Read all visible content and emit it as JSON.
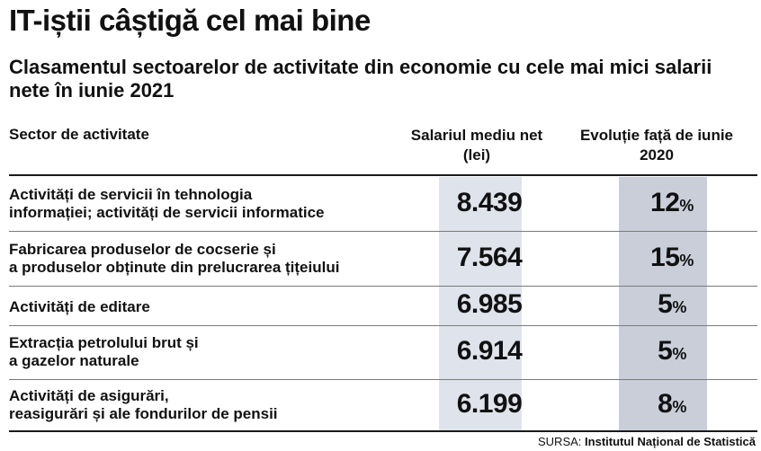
{
  "chart_data": {
    "type": "table",
    "title": "IT-iștii câștigă cel mai bine",
    "subtitle": "Clasamentul sectoarelor de activitate din economie cu cele mai mici salarii nete în iunie 2021",
    "columns": {
      "sector": "Sector de activitate",
      "salary": "Salariul mediu net (lei)",
      "evolution": "Evoluție față de iunie 2020"
    },
    "rows": [
      {
        "sector_line1": "Activități de servicii în tehnologia",
        "sector_line2": "informației; activități de servicii informatice",
        "salary": "8.439",
        "evolution": "12",
        "unit": "%"
      },
      {
        "sector_line1": "Fabricarea produselor de cocserie și",
        "sector_line2": "a produselor obținute din prelucrarea țițeiului",
        "salary": "7.564",
        "evolution": "15",
        "unit": "%"
      },
      {
        "sector_line1": "Activități de editare",
        "sector_line2": "",
        "salary": "6.985",
        "evolution": "5",
        "unit": "%"
      },
      {
        "sector_line1": "Extracția petrolului brut și",
        "sector_line2": "a gazelor naturale",
        "salary": "6.914",
        "evolution": "5",
        "unit": "%"
      },
      {
        "sector_line1": "Activități de asigurări,",
        "sector_line2": "reasigurări și ale fondurilor de pensii",
        "salary": "6.199",
        "evolution": "8",
        "unit": "%"
      }
    ],
    "source_label": "SURSA:",
    "source_name": "Institutul Național de Statistică"
  },
  "colors": {
    "salary_band": "#dfe3eb",
    "evolution_band": "#c9ced9",
    "text": "#111111"
  }
}
